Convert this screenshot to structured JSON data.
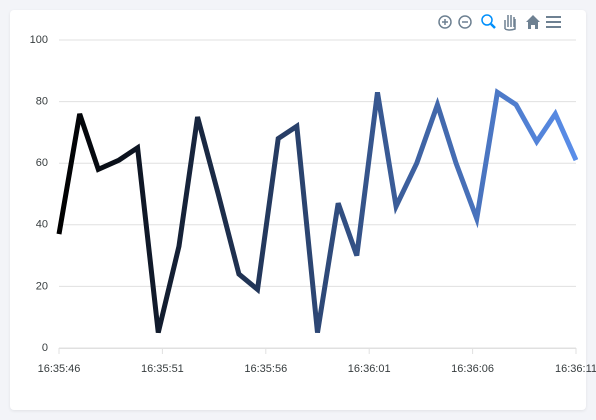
{
  "chart_data": {
    "type": "line",
    "x": [
      46,
      47.0,
      47.9,
      48.9,
      49.8,
      50.8,
      51.8,
      52.7,
      53.7,
      54.7,
      55.6,
      56.6,
      57.5,
      58.5,
      59.5,
      60.4,
      61.4,
      62.3,
      63.3,
      64.3,
      65.2,
      66.2,
      67.2,
      68.1,
      69.1,
      70.0,
      71
    ],
    "series": [
      {
        "colors": [
          "#000000",
          "#5a8eea"
        ],
        "values": [
          37,
          76,
          58,
          61,
          65,
          5,
          33,
          75,
          50,
          24,
          19,
          68,
          72,
          5,
          47,
          30,
          83,
          46,
          60,
          79,
          60,
          42,
          83,
          79,
          67,
          76,
          61
        ]
      }
    ],
    "xlim": [
      46,
      71
    ],
    "xticks": [
      {
        "value": 46,
        "label": "16:35:46"
      },
      {
        "value": 51,
        "label": "16:35:51"
      },
      {
        "value": 56,
        "label": "16:35:56"
      },
      {
        "value": 61,
        "label": "16:36:01"
      },
      {
        "value": 66,
        "label": "16:36:06"
      },
      {
        "value": 71,
        "label": "16:36:11"
      }
    ],
    "ylim": [
      0,
      100
    ],
    "yticks": [
      0,
      20,
      40,
      60,
      80,
      100
    ],
    "grid": true
  }
}
